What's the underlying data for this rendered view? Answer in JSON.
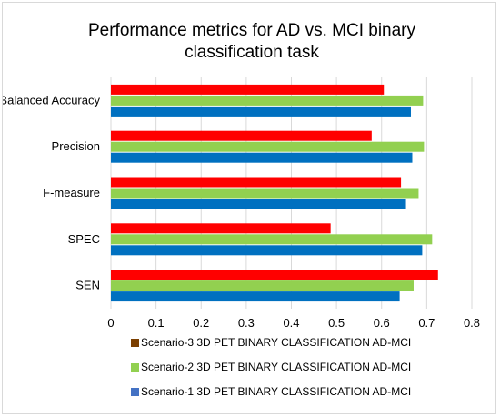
{
  "chart_data": {
    "type": "bar",
    "orientation": "horizontal",
    "title_lines": [
      "Performance metrics for AD vs. MCI binary",
      "classification task"
    ],
    "categories": [
      "Balanced Accuracy",
      "Precision",
      "F-measure",
      "SPEC",
      "SEN"
    ],
    "series": [
      {
        "name": "Scenario-3 3D PET BINARY CLASSIFICATION AD-MCI",
        "values": [
          0.605,
          0.578,
          0.643,
          0.487,
          0.725
        ],
        "color": "#ff0000"
      },
      {
        "name": "Scenario-2 3D PET BINARY CLASSIFICATION AD-MCI",
        "values": [
          0.692,
          0.694,
          0.682,
          0.712,
          0.671
        ],
        "color": "#92d050"
      },
      {
        "name": "Scenario-1 3D PET BINARY CLASSIFICATION AD-MCI",
        "values": [
          0.665,
          0.668,
          0.654,
          0.69,
          0.64
        ],
        "color": "#0070c0"
      }
    ],
    "legend_markers": [
      "#7b3f00",
      "#92d050",
      "#4472c4"
    ],
    "xlim": [
      0,
      0.8
    ],
    "xticks": [
      "0",
      "0.1",
      "0.2",
      "0.3",
      "0.4",
      "0.5",
      "0.6",
      "0.7",
      "0.8"
    ],
    "grid": true,
    "legend_position": "bottom"
  }
}
